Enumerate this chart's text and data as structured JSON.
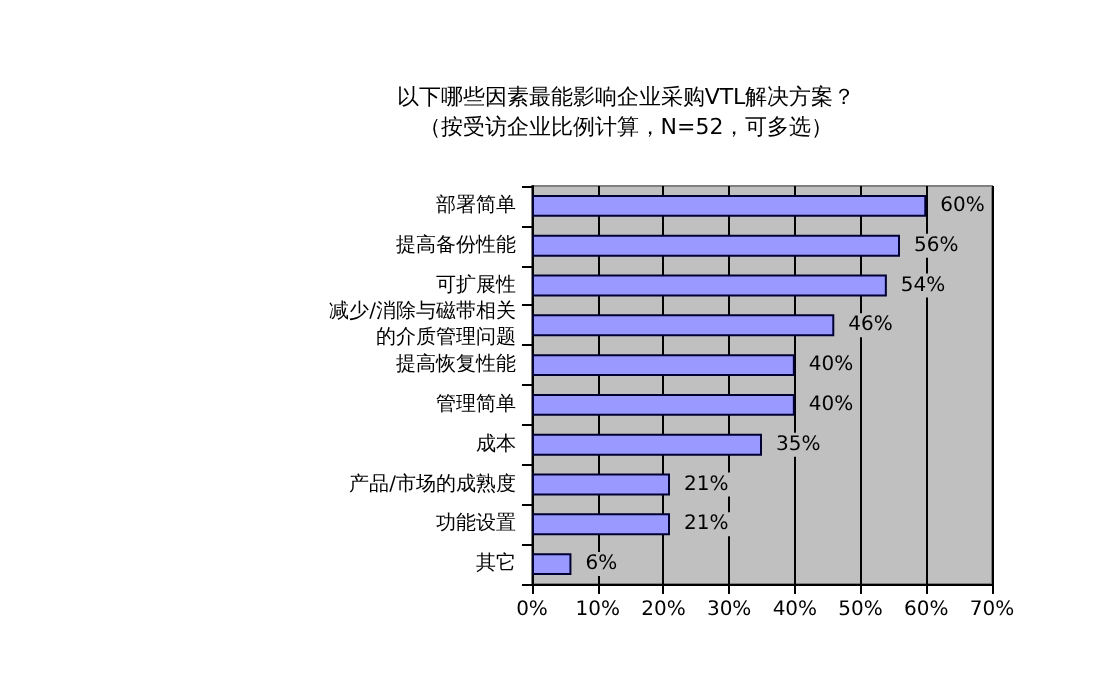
{
  "chart_data": {
    "type": "bar",
    "orientation": "horizontal",
    "title": "以下哪些因素最能影响企业采购VTL解决方案？",
    "subtitle": "（按受访企业比例计算，N=52，可多选）",
    "categories": [
      "部署简单",
      "提高备份性能",
      "可扩展性",
      "减少/消除与磁带相关的介质管理问题",
      "提高恢复性能",
      "管理简单",
      "成本",
      "产品/市场的成熟度",
      "功能设置",
      "其它"
    ],
    "values": [
      60,
      56,
      54,
      46,
      40,
      40,
      35,
      21,
      21,
      6
    ],
    "value_labels": [
      "60%",
      "56%",
      "54%",
      "46%",
      "40%",
      "40%",
      "35%",
      "21%",
      "21%",
      "6%"
    ],
    "color": "#9999ff",
    "xlim": [
      0,
      70
    ],
    "xticks": [
      {
        "value": 0,
        "label": "0%"
      },
      {
        "value": 10,
        "label": "10%"
      },
      {
        "value": 20,
        "label": "20%"
      },
      {
        "value": 30,
        "label": "30%"
      },
      {
        "value": 40,
        "label": "40%"
      },
      {
        "value": 50,
        "label": "50%"
      },
      {
        "value": 60,
        "label": "60%"
      },
      {
        "value": 70,
        "label": "70%"
      }
    ],
    "grid": "x"
  }
}
